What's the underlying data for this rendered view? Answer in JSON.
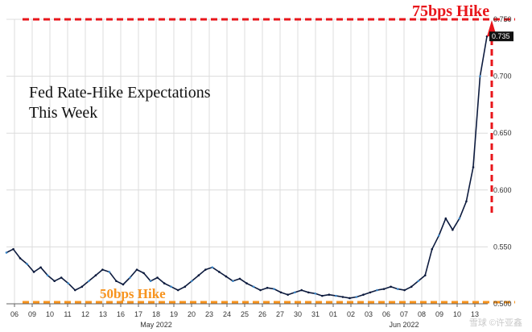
{
  "chart_data": {
    "type": "line",
    "title": "Fed Rate-Hike Expectations\nThis Week",
    "ylim": [
      0.5,
      0.75
    ],
    "yticks": [
      "0.750",
      "0.700",
      "0.650",
      "0.600",
      "0.550",
      "0.500"
    ],
    "last_value_label": "0.735",
    "xticks": [
      "06",
      "09",
      "10",
      "11",
      "12",
      "13",
      "16",
      "17",
      "18",
      "19",
      "20",
      "23",
      "24",
      "25",
      "26",
      "27",
      "30",
      "31",
      "01",
      "02",
      "03",
      "06",
      "07",
      "08",
      "09",
      "10",
      "13"
    ],
    "months": [
      {
        "label": "May 2022",
        "tick": "18"
      },
      {
        "label": "Jun 2022",
        "tick": "07"
      }
    ],
    "reference_lines": [
      {
        "label": "75bps Hike",
        "value": 0.75,
        "color": "#e8161b"
      },
      {
        "label": "50bps Hike",
        "value": 0.5,
        "color": "#f7931d"
      }
    ],
    "series": [
      {
        "values": [
          0.545,
          0.548,
          0.54,
          0.535,
          0.528,
          0.532,
          0.525,
          0.52,
          0.523,
          0.518,
          0.512,
          0.515,
          0.52,
          0.525,
          0.53,
          0.528,
          0.52,
          0.517,
          0.523,
          0.53,
          0.527,
          0.52,
          0.523,
          0.518,
          0.515,
          0.512,
          0.515,
          0.52,
          0.525,
          0.53,
          0.532,
          0.528,
          0.524,
          0.52,
          0.522,
          0.518,
          0.515,
          0.512,
          0.514,
          0.513,
          0.51,
          0.508,
          0.51,
          0.512,
          0.51,
          0.509,
          0.507,
          0.508,
          0.507,
          0.506,
          0.505,
          0.506,
          0.508,
          0.51,
          0.512,
          0.513,
          0.515,
          0.513,
          0.512,
          0.515,
          0.52,
          0.525,
          0.548,
          0.56,
          0.575,
          0.565,
          0.575,
          0.59,
          0.62,
          0.7,
          0.735
        ]
      }
    ]
  },
  "annotations": {
    "hike75_label": "75bps Hike",
    "hike50_label": "50bps Hike",
    "watermark": "雪球 ©许亚鑫"
  },
  "colors": {
    "line": "#0d1b3e",
    "line_accent": "#3a86c8",
    "hike75": "#e8161b",
    "hike50": "#f7931d",
    "grid": "#dcdcdc"
  }
}
